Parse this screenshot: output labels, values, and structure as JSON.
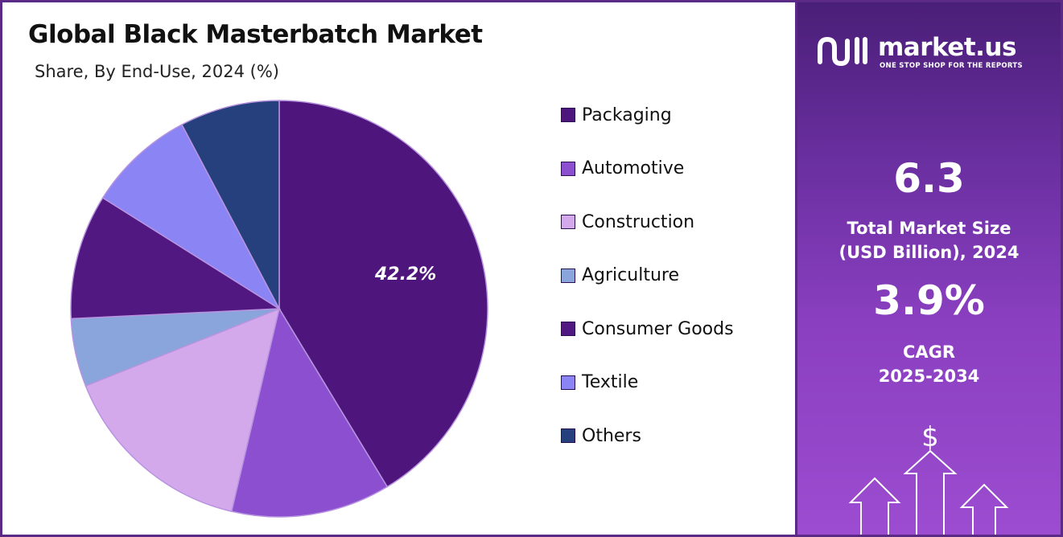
{
  "title": "Global Black Masterbatch Market",
  "subtitle": "Share, By End-Use, 2024 (%)",
  "chart_data": {
    "type": "pie",
    "title": "Global Black Masterbatch Market",
    "subtitle": "Share, By End-Use, 2024 (%)",
    "slices": [
      {
        "label": "Packaging",
        "value": 42.2,
        "color": "#4e157d",
        "show_label": true,
        "label_text": "42.2%"
      },
      {
        "label": "Automotive",
        "value": 12.6,
        "color": "#8b4fd0",
        "show_label": false
      },
      {
        "label": "Construction",
        "value": 15.6,
        "color": "#d4a9ec",
        "show_label": false
      },
      {
        "label": "Agriculture",
        "value": 5.4,
        "color": "#8aa5dc",
        "show_label": false
      },
      {
        "label": "Consumer Goods",
        "value": 9.9,
        "color": "#501880",
        "show_label": false
      },
      {
        "label": "Textile",
        "value": 8.5,
        "color": "#8a84f5",
        "show_label": false
      },
      {
        "label": "Others",
        "value": 7.9,
        "color": "#25407c",
        "show_label": false
      }
    ],
    "start_angle_deg": 0,
    "direction": "clockwise",
    "legend_position": "right"
  },
  "side_panel": {
    "brand_name": "market.us",
    "brand_tagline": "ONE STOP SHOP FOR THE REPORTS",
    "market_size_value": "6.3",
    "market_size_label_line1": "Total Market Size",
    "market_size_label_line2": "(USD Billion), 2024",
    "cagr_value": "3.9%",
    "cagr_label_line1": "CAGR",
    "cagr_label_line2": "2025-2034",
    "currency_symbol": "$"
  }
}
